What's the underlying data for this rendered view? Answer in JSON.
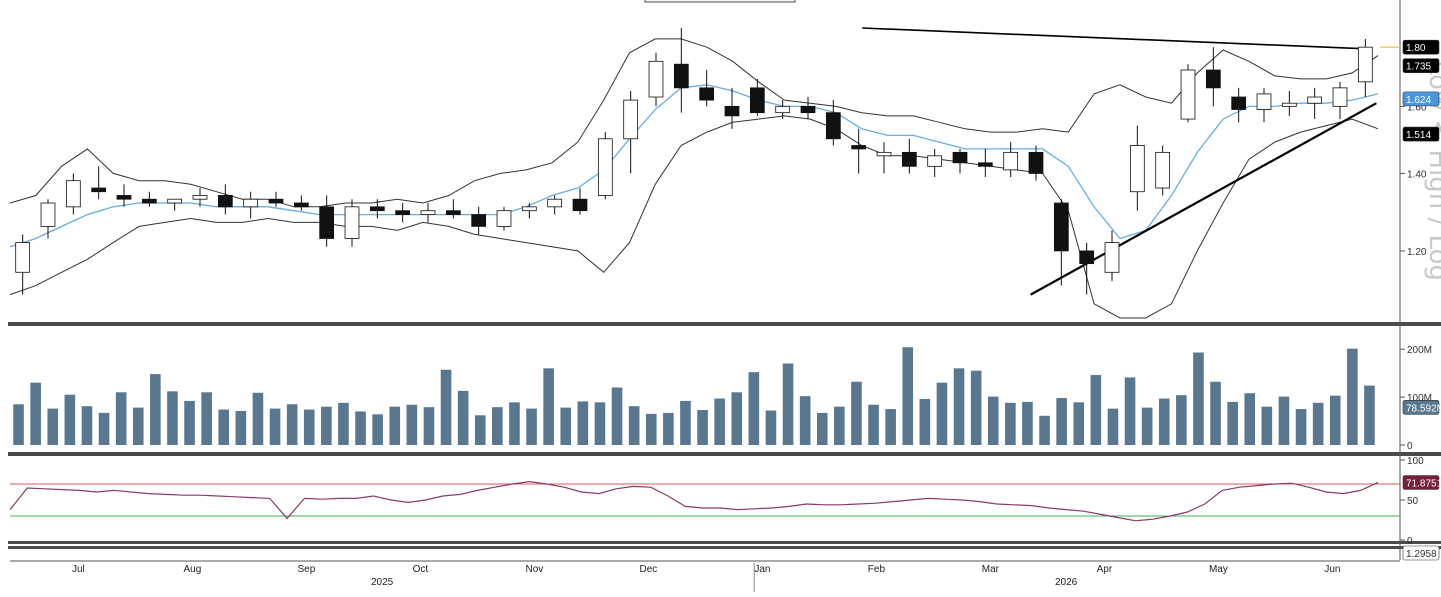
{
  "chart_data": [
    {
      "panel": "price",
      "type": "candlestick",
      "watermark": "Low < High / Log",
      "scale": "log",
      "ylim": [
        1.05,
        1.9
      ],
      "yticks": [
        {
          "value": 1.2,
          "label": "1.20"
        },
        {
          "value": 1.4,
          "label": "1.40"
        },
        {
          "value": 1.6,
          "label": "1.60"
        }
      ],
      "value_tags": [
        {
          "value": 1.8,
          "label": "1.80",
          "color": "#000000",
          "text_color": "#ffffff"
        },
        {
          "value": 1.735,
          "label": "1.735",
          "color": "#000000",
          "text_color": "#ffffff"
        },
        {
          "value": 1.624,
          "label": "1.624",
          "color": "#4a97dd",
          "text_color": "#ffffff"
        },
        {
          "value": 1.514,
          "label": "1.514",
          "color": "#000000",
          "text_color": "#ffffff"
        }
      ],
      "overlays": [
        {
          "name": "Moving Average",
          "color": "#6aaee0",
          "values": [
            1.21,
            1.23,
            1.26,
            1.29,
            1.31,
            1.32,
            1.32,
            1.32,
            1.31,
            1.31,
            1.31,
            1.3,
            1.29,
            1.29,
            1.29,
            1.29,
            1.29,
            1.29,
            1.29,
            1.29,
            1.31,
            1.34,
            1.36,
            1.41,
            1.5,
            1.59,
            1.66,
            1.67,
            1.65,
            1.62,
            1.6,
            1.6,
            1.58,
            1.53,
            1.51,
            1.51,
            1.49,
            1.47,
            1.47,
            1.47,
            1.47,
            1.42,
            1.31,
            1.23,
            1.25,
            1.34,
            1.46,
            1.56,
            1.6,
            1.6,
            1.61,
            1.61,
            1.62,
            1.64
          ]
        },
        {
          "name": "Upper Band",
          "color": "#333333",
          "values": [
            1.32,
            1.34,
            1.42,
            1.47,
            1.4,
            1.38,
            1.38,
            1.37,
            1.35,
            1.33,
            1.33,
            1.31,
            1.31,
            1.32,
            1.32,
            1.33,
            1.32,
            1.34,
            1.38,
            1.4,
            1.41,
            1.43,
            1.49,
            1.62,
            1.78,
            1.83,
            1.83,
            1.8,
            1.75,
            1.68,
            1.62,
            1.61,
            1.6,
            1.58,
            1.57,
            1.57,
            1.55,
            1.53,
            1.52,
            1.52,
            1.53,
            1.52,
            1.64,
            1.67,
            1.63,
            1.61,
            1.71,
            1.79,
            1.75,
            1.7,
            1.69,
            1.69,
            1.71,
            1.77
          ]
        },
        {
          "name": "Lower Band",
          "color": "#333333",
          "values": [
            1.1,
            1.12,
            1.15,
            1.18,
            1.22,
            1.26,
            1.27,
            1.28,
            1.27,
            1.27,
            1.28,
            1.27,
            1.27,
            1.26,
            1.26,
            1.25,
            1.27,
            1.26,
            1.24,
            1.23,
            1.22,
            1.21,
            1.2,
            1.15,
            1.22,
            1.37,
            1.48,
            1.52,
            1.55,
            1.56,
            1.57,
            1.56,
            1.53,
            1.48,
            1.45,
            1.45,
            1.44,
            1.43,
            1.42,
            1.41,
            1.4,
            1.3,
            1.08,
            1.05,
            1.05,
            1.08,
            1.2,
            1.32,
            1.44,
            1.49,
            1.52,
            1.54,
            1.56,
            1.53
          ]
        },
        {
          "name": "Trendline",
          "color": "#000000",
          "segments": [
            {
              "from": [
                0.623,
                1.87
              ],
              "to": [
                0.9867,
                1.795
              ]
            },
            {
              "from": [
                0.7461,
                1.1
              ],
              "to": [
                0.9988,
                1.61
              ]
            }
          ]
        }
      ],
      "candles": [
        [
          1.15,
          1.24,
          1.1,
          1.22
        ],
        [
          1.26,
          1.33,
          1.23,
          1.32
        ],
        [
          1.31,
          1.4,
          1.29,
          1.38
        ],
        [
          1.36,
          1.42,
          1.33,
          1.35
        ],
        [
          1.34,
          1.37,
          1.31,
          1.33
        ],
        [
          1.33,
          1.35,
          1.31,
          1.32
        ],
        [
          1.32,
          1.33,
          1.3,
          1.33
        ],
        [
          1.33,
          1.36,
          1.31,
          1.34
        ],
        [
          1.34,
          1.37,
          1.29,
          1.31
        ],
        [
          1.31,
          1.35,
          1.28,
          1.33
        ],
        [
          1.33,
          1.35,
          1.31,
          1.32
        ],
        [
          1.32,
          1.34,
          1.3,
          1.31
        ],
        [
          1.31,
          1.34,
          1.21,
          1.23
        ],
        [
          1.23,
          1.33,
          1.21,
          1.31
        ],
        [
          1.31,
          1.33,
          1.28,
          1.3
        ],
        [
          1.3,
          1.32,
          1.27,
          1.29
        ],
        [
          1.29,
          1.32,
          1.27,
          1.3
        ],
        [
          1.3,
          1.33,
          1.28,
          1.29
        ],
        [
          1.29,
          1.31,
          1.24,
          1.26
        ],
        [
          1.26,
          1.31,
          1.25,
          1.3
        ],
        [
          1.3,
          1.32,
          1.28,
          1.31
        ],
        [
          1.31,
          1.34,
          1.29,
          1.33
        ],
        [
          1.33,
          1.36,
          1.29,
          1.3
        ],
        [
          1.34,
          1.52,
          1.33,
          1.5
        ],
        [
          1.5,
          1.65,
          1.4,
          1.62
        ],
        [
          1.63,
          1.78,
          1.6,
          1.75
        ],
        [
          1.74,
          1.87,
          1.58,
          1.66
        ],
        [
          1.66,
          1.72,
          1.6,
          1.62
        ],
        [
          1.6,
          1.66,
          1.53,
          1.57
        ],
        [
          1.66,
          1.69,
          1.57,
          1.58
        ],
        [
          1.58,
          1.62,
          1.56,
          1.6
        ],
        [
          1.6,
          1.63,
          1.56,
          1.58
        ],
        [
          1.58,
          1.62,
          1.48,
          1.5
        ],
        [
          1.48,
          1.53,
          1.4,
          1.47
        ],
        [
          1.45,
          1.49,
          1.4,
          1.46
        ],
        [
          1.46,
          1.5,
          1.4,
          1.42
        ],
        [
          1.42,
          1.47,
          1.39,
          1.45
        ],
        [
          1.46,
          1.47,
          1.4,
          1.43
        ],
        [
          1.43,
          1.47,
          1.39,
          1.42
        ],
        [
          1.41,
          1.49,
          1.39,
          1.46
        ],
        [
          1.46,
          1.48,
          1.38,
          1.4
        ],
        [
          1.32,
          1.33,
          1.12,
          1.2
        ],
        [
          1.2,
          1.22,
          1.1,
          1.17
        ],
        [
          1.15,
          1.25,
          1.13,
          1.22
        ],
        [
          1.35,
          1.54,
          1.3,
          1.48
        ],
        [
          1.36,
          1.48,
          1.34,
          1.46
        ],
        [
          1.56,
          1.74,
          1.55,
          1.72
        ],
        [
          1.72,
          1.8,
          1.6,
          1.66
        ],
        [
          1.63,
          1.66,
          1.55,
          1.59
        ],
        [
          1.59,
          1.66,
          1.55,
          1.64
        ],
        [
          1.6,
          1.65,
          1.57,
          1.61
        ],
        [
          1.61,
          1.66,
          1.56,
          1.63
        ],
        [
          1.6,
          1.68,
          1.56,
          1.66
        ],
        [
          1.68,
          1.83,
          1.63,
          1.8
        ]
      ]
    },
    {
      "panel": "volume",
      "type": "bar",
      "ylim": [
        0,
        240
      ],
      "yticks": [
        {
          "value": 0,
          "label": "0"
        },
        {
          "value": 100,
          "label": "100M"
        },
        {
          "value": 200,
          "label": "200M"
        }
      ],
      "value_tag": {
        "value": 78.59,
        "label": "78.592M",
        "color": "#5a7790"
      },
      "bar_color": "#5a7790",
      "values": [
        85,
        130,
        76,
        105,
        81,
        67,
        110,
        78,
        148,
        112,
        92,
        110,
        74,
        71,
        109,
        76,
        85,
        74,
        80,
        88,
        70,
        64,
        80,
        84,
        79,
        157,
        113,
        62,
        79,
        89,
        76,
        160,
        78,
        91,
        89,
        120,
        81,
        65,
        67,
        92,
        73,
        97,
        110,
        152,
        72,
        170,
        102,
        67,
        80,
        132,
        84,
        75,
        204,
        96,
        130,
        160,
        155,
        101,
        88,
        90,
        61,
        98,
        89,
        146,
        76,
        141,
        78,
        97,
        104,
        193,
        132,
        90,
        108,
        80,
        101,
        75,
        88,
        103,
        201,
        124
      ]
    },
    {
      "panel": "rsi",
      "type": "line",
      "ylim": [
        0,
        100
      ],
      "yticks": [
        {
          "value": 0,
          "label": "0"
        },
        {
          "value": 50,
          "label": "50"
        },
        {
          "value": 100,
          "label": "100"
        }
      ],
      "thresholds": [
        {
          "value": 70,
          "color": "#e05a5a"
        },
        {
          "value": 30,
          "color": "#3cb04a"
        }
      ],
      "value_tag": {
        "value": 71.875,
        "label": "71.8751",
        "color": "#7a1d3c"
      },
      "line_color": "#8a3a6a",
      "values": [
        38,
        65,
        64,
        63,
        62,
        60,
        62,
        60,
        58,
        57,
        56,
        56,
        55,
        54,
        53,
        52,
        27,
        52,
        51,
        52,
        52,
        55,
        50,
        47,
        50,
        55,
        57,
        62,
        66,
        70,
        73,
        70,
        66,
        60,
        58,
        64,
        67,
        66,
        55,
        42,
        40,
        40,
        38,
        39,
        40,
        42,
        45,
        44,
        44,
        45,
        46,
        48,
        50,
        52,
        51,
        50,
        48,
        45,
        44,
        43,
        40,
        38,
        36,
        32,
        28,
        24,
        26,
        30,
        35,
        45,
        62,
        66,
        68,
        70,
        71,
        66,
        60,
        58,
        62,
        72
      ]
    }
  ],
  "bottom_value_tag": {
    "label": "1.2958",
    "color": "#ffffff"
  },
  "time_axis": {
    "months": [
      "Jul",
      "Aug",
      "Sep",
      "Oct",
      "Nov",
      "Dec",
      "Jan",
      "Feb",
      "Mar",
      "Apr",
      "May",
      "Jun"
    ],
    "years": [
      "2025",
      "2026"
    ]
  }
}
